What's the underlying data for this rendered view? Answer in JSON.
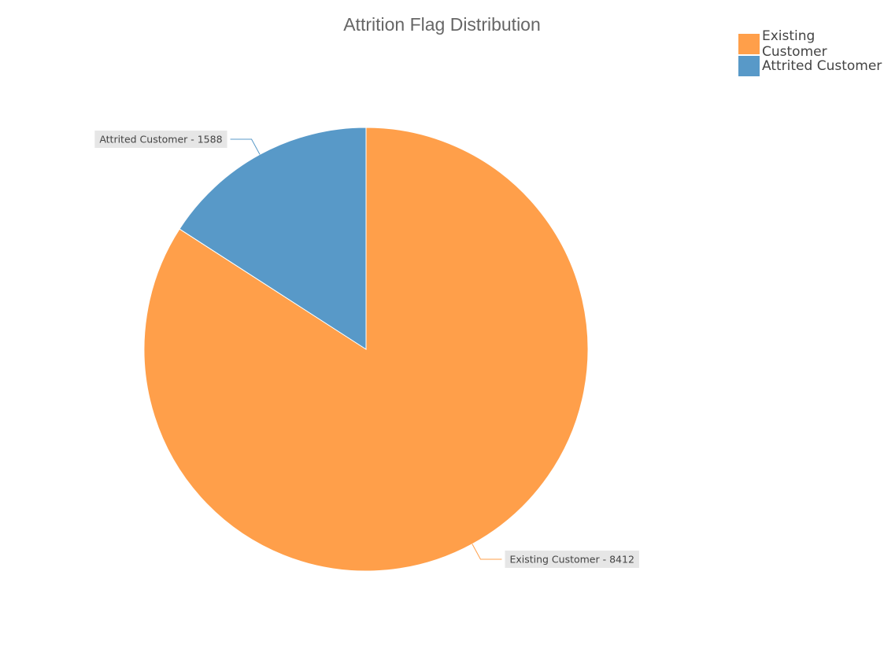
{
  "chart_data": {
    "type": "pie",
    "title": "Attrition Flag Distribution",
    "categories": [
      "Existing Customer",
      "Attrited Customer"
    ],
    "values": [
      8412,
      1588
    ],
    "colors": [
      "#ff9f4a",
      "#5899c8"
    ],
    "data_labels": [
      "Existing Customer - 8412",
      "Attrited Customer - 1588"
    ],
    "legend": {
      "position": "top-right",
      "entries": [
        "Existing Customer",
        "Attrited Customer"
      ]
    }
  }
}
